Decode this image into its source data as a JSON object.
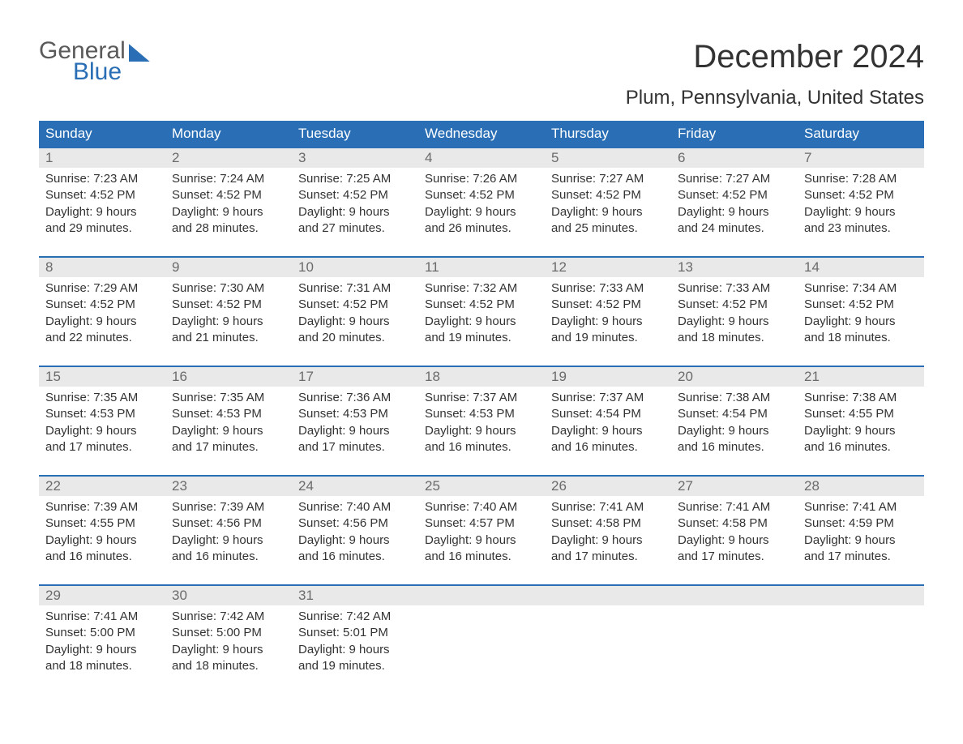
{
  "branding": {
    "logo_line1": "General",
    "logo_line2": "Blue",
    "logo_color_primary": "#5a5a5a",
    "logo_color_accent": "#2a6fb5"
  },
  "title": {
    "month": "December 2024",
    "location": "Plum, Pennsylvania, United States",
    "title_fontsize": 40,
    "location_fontsize": 24
  },
  "calendar": {
    "type": "table",
    "columns": [
      "Sunday",
      "Monday",
      "Tuesday",
      "Wednesday",
      "Thursday",
      "Friday",
      "Saturday"
    ],
    "header_bg": "#2a6fb5",
    "header_fg": "#ffffff",
    "week_border_color": "#2a6fb5",
    "daynum_bg": "#e9e9e9",
    "daynum_fg": "#6b6b6b",
    "body_fg": "#333333",
    "body_fontsize": 15,
    "weeks": [
      [
        {
          "day": "1",
          "sunrise": "Sunrise: 7:23 AM",
          "sunset": "Sunset: 4:52 PM",
          "dl1": "Daylight: 9 hours",
          "dl2": "and 29 minutes."
        },
        {
          "day": "2",
          "sunrise": "Sunrise: 7:24 AM",
          "sunset": "Sunset: 4:52 PM",
          "dl1": "Daylight: 9 hours",
          "dl2": "and 28 minutes."
        },
        {
          "day": "3",
          "sunrise": "Sunrise: 7:25 AM",
          "sunset": "Sunset: 4:52 PM",
          "dl1": "Daylight: 9 hours",
          "dl2": "and 27 minutes."
        },
        {
          "day": "4",
          "sunrise": "Sunrise: 7:26 AM",
          "sunset": "Sunset: 4:52 PM",
          "dl1": "Daylight: 9 hours",
          "dl2": "and 26 minutes."
        },
        {
          "day": "5",
          "sunrise": "Sunrise: 7:27 AM",
          "sunset": "Sunset: 4:52 PM",
          "dl1": "Daylight: 9 hours",
          "dl2": "and 25 minutes."
        },
        {
          "day": "6",
          "sunrise": "Sunrise: 7:27 AM",
          "sunset": "Sunset: 4:52 PM",
          "dl1": "Daylight: 9 hours",
          "dl2": "and 24 minutes."
        },
        {
          "day": "7",
          "sunrise": "Sunrise: 7:28 AM",
          "sunset": "Sunset: 4:52 PM",
          "dl1": "Daylight: 9 hours",
          "dl2": "and 23 minutes."
        }
      ],
      [
        {
          "day": "8",
          "sunrise": "Sunrise: 7:29 AM",
          "sunset": "Sunset: 4:52 PM",
          "dl1": "Daylight: 9 hours",
          "dl2": "and 22 minutes."
        },
        {
          "day": "9",
          "sunrise": "Sunrise: 7:30 AM",
          "sunset": "Sunset: 4:52 PM",
          "dl1": "Daylight: 9 hours",
          "dl2": "and 21 minutes."
        },
        {
          "day": "10",
          "sunrise": "Sunrise: 7:31 AM",
          "sunset": "Sunset: 4:52 PM",
          "dl1": "Daylight: 9 hours",
          "dl2": "and 20 minutes."
        },
        {
          "day": "11",
          "sunrise": "Sunrise: 7:32 AM",
          "sunset": "Sunset: 4:52 PM",
          "dl1": "Daylight: 9 hours",
          "dl2": "and 19 minutes."
        },
        {
          "day": "12",
          "sunrise": "Sunrise: 7:33 AM",
          "sunset": "Sunset: 4:52 PM",
          "dl1": "Daylight: 9 hours",
          "dl2": "and 19 minutes."
        },
        {
          "day": "13",
          "sunrise": "Sunrise: 7:33 AM",
          "sunset": "Sunset: 4:52 PM",
          "dl1": "Daylight: 9 hours",
          "dl2": "and 18 minutes."
        },
        {
          "day": "14",
          "sunrise": "Sunrise: 7:34 AM",
          "sunset": "Sunset: 4:52 PM",
          "dl1": "Daylight: 9 hours",
          "dl2": "and 18 minutes."
        }
      ],
      [
        {
          "day": "15",
          "sunrise": "Sunrise: 7:35 AM",
          "sunset": "Sunset: 4:53 PM",
          "dl1": "Daylight: 9 hours",
          "dl2": "and 17 minutes."
        },
        {
          "day": "16",
          "sunrise": "Sunrise: 7:35 AM",
          "sunset": "Sunset: 4:53 PM",
          "dl1": "Daylight: 9 hours",
          "dl2": "and 17 minutes."
        },
        {
          "day": "17",
          "sunrise": "Sunrise: 7:36 AM",
          "sunset": "Sunset: 4:53 PM",
          "dl1": "Daylight: 9 hours",
          "dl2": "and 17 minutes."
        },
        {
          "day": "18",
          "sunrise": "Sunrise: 7:37 AM",
          "sunset": "Sunset: 4:53 PM",
          "dl1": "Daylight: 9 hours",
          "dl2": "and 16 minutes."
        },
        {
          "day": "19",
          "sunrise": "Sunrise: 7:37 AM",
          "sunset": "Sunset: 4:54 PM",
          "dl1": "Daylight: 9 hours",
          "dl2": "and 16 minutes."
        },
        {
          "day": "20",
          "sunrise": "Sunrise: 7:38 AM",
          "sunset": "Sunset: 4:54 PM",
          "dl1": "Daylight: 9 hours",
          "dl2": "and 16 minutes."
        },
        {
          "day": "21",
          "sunrise": "Sunrise: 7:38 AM",
          "sunset": "Sunset: 4:55 PM",
          "dl1": "Daylight: 9 hours",
          "dl2": "and 16 minutes."
        }
      ],
      [
        {
          "day": "22",
          "sunrise": "Sunrise: 7:39 AM",
          "sunset": "Sunset: 4:55 PM",
          "dl1": "Daylight: 9 hours",
          "dl2": "and 16 minutes."
        },
        {
          "day": "23",
          "sunrise": "Sunrise: 7:39 AM",
          "sunset": "Sunset: 4:56 PM",
          "dl1": "Daylight: 9 hours",
          "dl2": "and 16 minutes."
        },
        {
          "day": "24",
          "sunrise": "Sunrise: 7:40 AM",
          "sunset": "Sunset: 4:56 PM",
          "dl1": "Daylight: 9 hours",
          "dl2": "and 16 minutes."
        },
        {
          "day": "25",
          "sunrise": "Sunrise: 7:40 AM",
          "sunset": "Sunset: 4:57 PM",
          "dl1": "Daylight: 9 hours",
          "dl2": "and 16 minutes."
        },
        {
          "day": "26",
          "sunrise": "Sunrise: 7:41 AM",
          "sunset": "Sunset: 4:58 PM",
          "dl1": "Daylight: 9 hours",
          "dl2": "and 17 minutes."
        },
        {
          "day": "27",
          "sunrise": "Sunrise: 7:41 AM",
          "sunset": "Sunset: 4:58 PM",
          "dl1": "Daylight: 9 hours",
          "dl2": "and 17 minutes."
        },
        {
          "day": "28",
          "sunrise": "Sunrise: 7:41 AM",
          "sunset": "Sunset: 4:59 PM",
          "dl1": "Daylight: 9 hours",
          "dl2": "and 17 minutes."
        }
      ],
      [
        {
          "day": "29",
          "sunrise": "Sunrise: 7:41 AM",
          "sunset": "Sunset: 5:00 PM",
          "dl1": "Daylight: 9 hours",
          "dl2": "and 18 minutes."
        },
        {
          "day": "30",
          "sunrise": "Sunrise: 7:42 AM",
          "sunset": "Sunset: 5:00 PM",
          "dl1": "Daylight: 9 hours",
          "dl2": "and 18 minutes."
        },
        {
          "day": "31",
          "sunrise": "Sunrise: 7:42 AM",
          "sunset": "Sunset: 5:01 PM",
          "dl1": "Daylight: 9 hours",
          "dl2": "and 19 minutes."
        },
        {
          "day": "",
          "sunrise": "",
          "sunset": "",
          "dl1": "",
          "dl2": "",
          "empty": true
        },
        {
          "day": "",
          "sunrise": "",
          "sunset": "",
          "dl1": "",
          "dl2": "",
          "empty": true
        },
        {
          "day": "",
          "sunrise": "",
          "sunset": "",
          "dl1": "",
          "dl2": "",
          "empty": true
        },
        {
          "day": "",
          "sunrise": "",
          "sunset": "",
          "dl1": "",
          "dl2": "",
          "empty": true
        }
      ]
    ]
  }
}
